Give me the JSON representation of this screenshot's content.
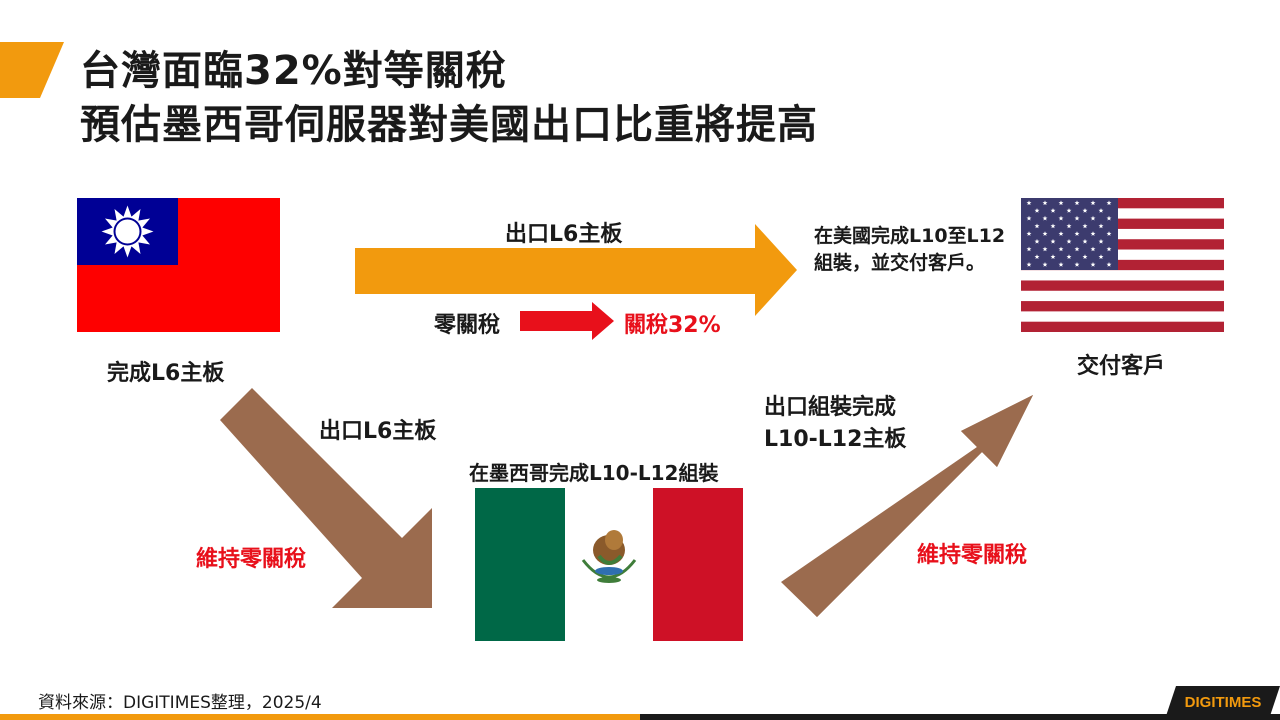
{
  "header": {
    "title_line1": "台灣面臨32%對等關稅",
    "title_line2": "預估墨西哥伺服器對美國出口比重將提高"
  },
  "flags": {
    "taiwan": {
      "caption": "完成L6主板"
    },
    "usa": {
      "caption": "交付客戶"
    },
    "mexico": {
      "caption": "在墨西哥完成L10-L12組裝"
    }
  },
  "routes": {
    "direct": {
      "label": "出口L6主板",
      "tariff_before": "零關稅",
      "tariff_after": "關稅32%",
      "destination_note": "在美國完成L10至L12組裝，並交付客戶。"
    },
    "to_mexico": {
      "label": "出口L6主板",
      "tariff": "維持零關稅"
    },
    "from_mexico": {
      "label_line1": "出口組裝完成",
      "label_line2": "L10-L12主板",
      "tariff": "維持零關稅"
    }
  },
  "footer": {
    "source": "資料來源：DIGITIMES整理，2025/4",
    "logo_text": "DIGITIMES"
  },
  "colors": {
    "orange_arrow": "#f29a0e",
    "brown_arrow": "#9b6b4e",
    "red_arrow": "#e8101b",
    "accent": "#f29a0e",
    "tw_red": "#fe0000",
    "tw_blue": "#000095",
    "us_red": "#b22234",
    "us_blue": "#3c3b6e",
    "mx_green": "#006847",
    "mx_red": "#ce1126"
  }
}
